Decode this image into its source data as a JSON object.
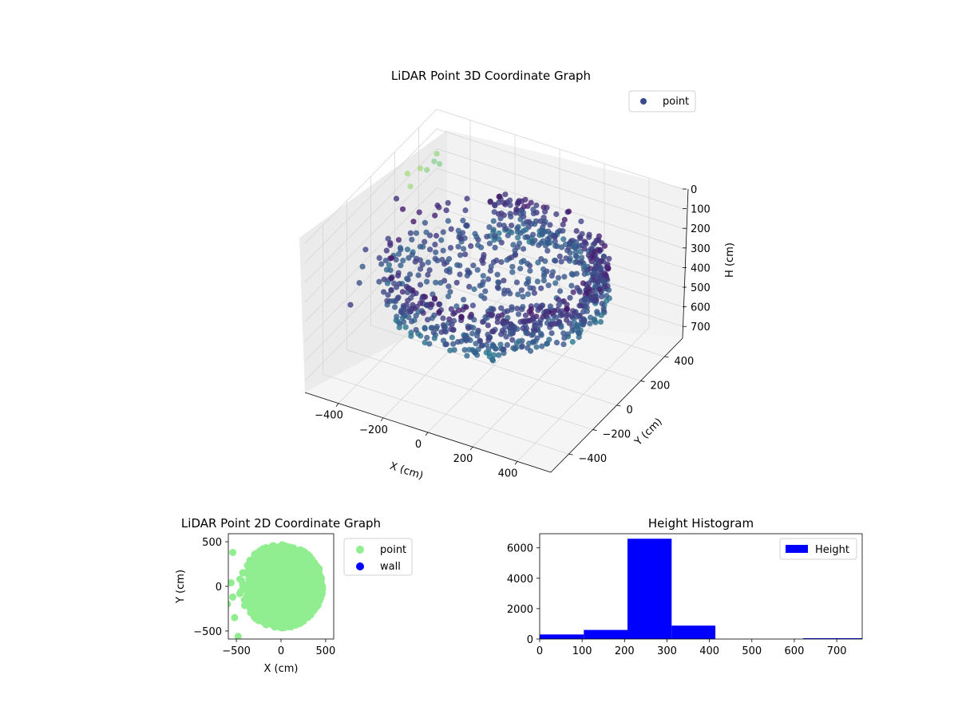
{
  "chart_data": [
    {
      "type": "scatter",
      "title": "LiDAR Point 3D Coordinate Graph",
      "xlabel": "X (cm)",
      "ylabel": "Y (cm)",
      "zlabel": "H (cm)",
      "xticks": [
        "−400",
        "−200",
        "0",
        "200",
        "400"
      ],
      "yticks": [
        "−400",
        "−200",
        "0",
        "200",
        "400"
      ],
      "zticks": [
        "0",
        "100",
        "200",
        "300",
        "400",
        "500",
        "600",
        "700"
      ],
      "xlim": [
        -550,
        550
      ],
      "ylim": [
        -550,
        550
      ],
      "zlim": [
        760,
        0
      ],
      "z_inverted": true,
      "colormap": "viridis",
      "legend": {
        "position": "top-right",
        "entries": [
          {
            "label": "point",
            "color": "#3b4a8c"
          }
        ]
      },
      "series": [
        {
          "name": "point",
          "description_values": "dense ring of points, radius ~450 cm, mostly at 200-400 cm height; sparse outliers at negative x"
        }
      ],
      "grid": true
    },
    {
      "type": "scatter",
      "title": "LiDAR Point 2D Coordinate Graph",
      "xlabel": "X (cm)",
      "ylabel": "Y (cm)",
      "xticks": [
        "−500",
        "0",
        "500"
      ],
      "yticks": [
        "−500",
        "0",
        "500"
      ],
      "xlim": [
        -590,
        590
      ],
      "ylim": [
        -590,
        590
      ],
      "legend": {
        "position": "outside-right",
        "entries": [
          {
            "label": "point",
            "color": "#90ee90"
          },
          {
            "label": "wall",
            "color": "#0000ff"
          }
        ]
      },
      "series": [
        {
          "name": "point",
          "color": "#90ee90"
        },
        {
          "name": "wall",
          "color": "#0000ff"
        }
      ],
      "grid": false
    },
    {
      "type": "bar",
      "title": "Height Histogram",
      "xlabel": "",
      "ylabel": "",
      "bin_edges": [
        0,
        104,
        207,
        311,
        414,
        518,
        621,
        760
      ],
      "values": [
        300,
        600,
        6600,
        880,
        0,
        0,
        50
      ],
      "xlim": [
        0,
        760
      ],
      "ylim": [
        0,
        6930
      ],
      "xticks": [
        "0",
        "100",
        "200",
        "300",
        "400",
        "500",
        "600",
        "700"
      ],
      "yticks": [
        "0",
        "2000",
        "4000",
        "6000"
      ],
      "color": "#0000ff",
      "legend": {
        "position": "top-right",
        "entries": [
          {
            "label": "Height",
            "color": "#0000ff"
          }
        ]
      },
      "grid": false
    }
  ]
}
